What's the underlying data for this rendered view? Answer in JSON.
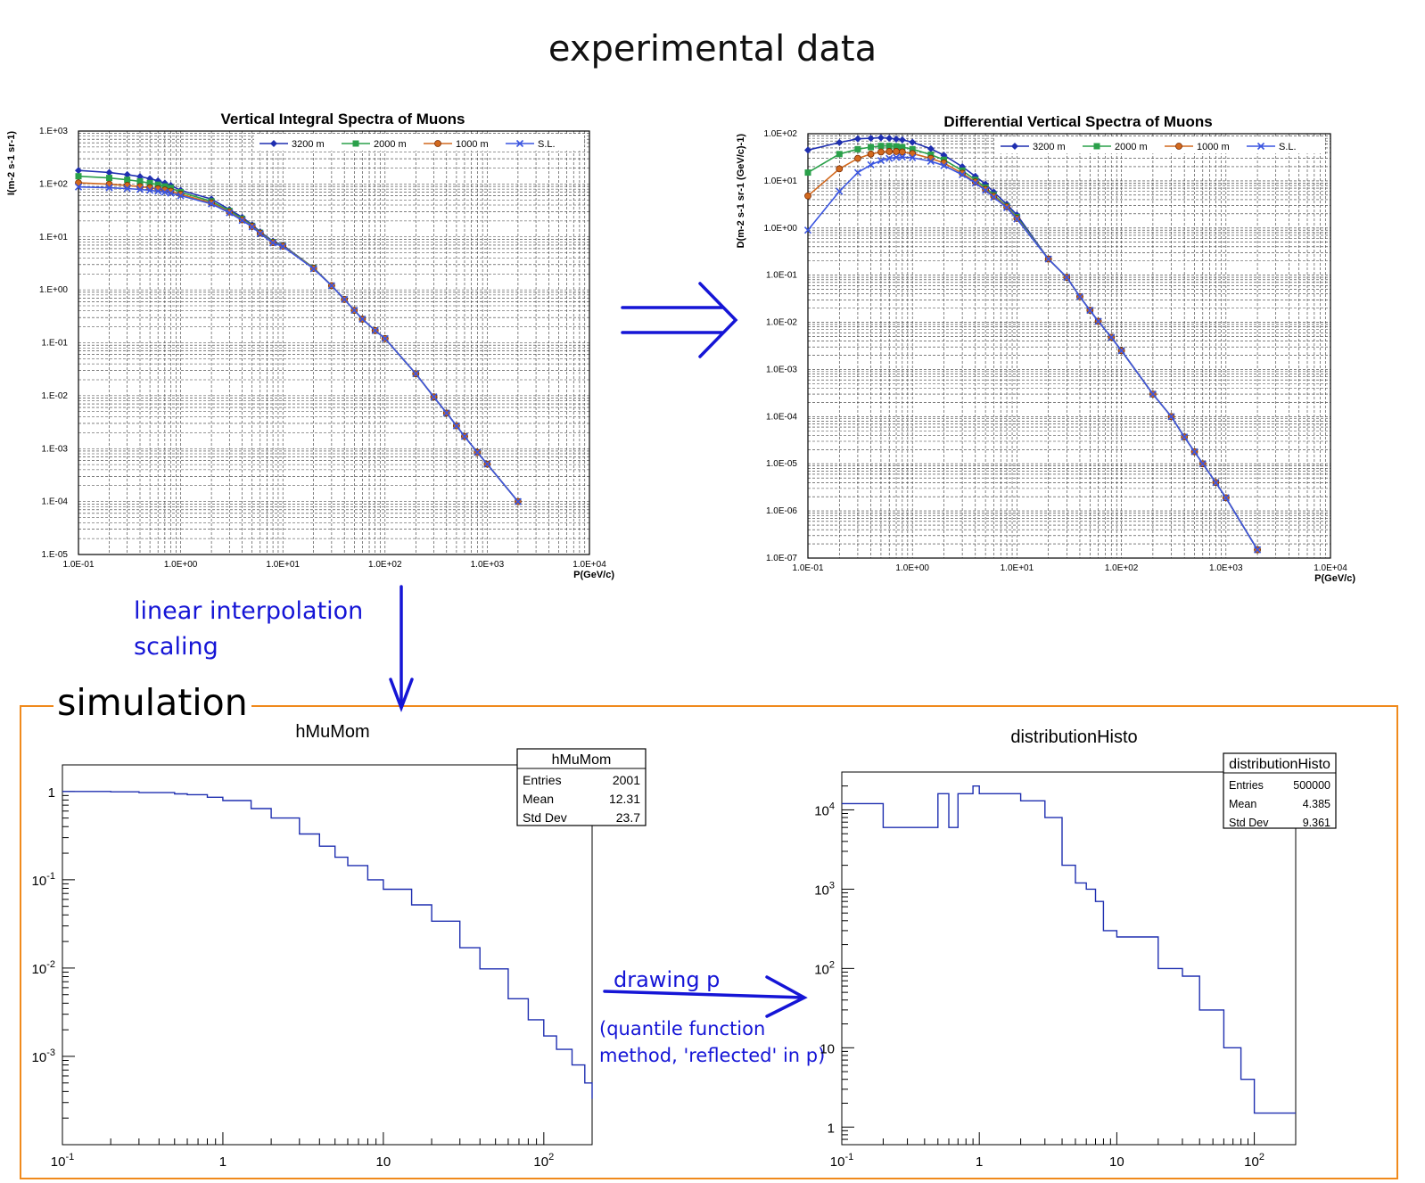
{
  "slide": {
    "title": "experimental data",
    "sim_label": "simulation",
    "note_interp_line1": "linear interpolation",
    "note_interp_line2": "scaling",
    "note_draw": "drawing p",
    "note_quantile_line1": "(quantile function",
    "note_quantile_line2": "method, 'reflected' in p)",
    "accent_color": "#1515d6",
    "frame_color": "#f08a1c"
  },
  "chart_data": [
    {
      "type": "line",
      "title": "Vertical Integral Spectra of Muons",
      "xlabel": "P(GeV/c)",
      "ylabel": "I(m-2 s-1 sr-1)",
      "xscale": "log",
      "yscale": "log",
      "xlim": [
        0.1,
        10000
      ],
      "ylim": [
        1e-05,
        1000
      ],
      "xtick_labels": [
        "1.0E-01",
        "1.0E+00",
        "1.0E+01",
        "1.0E+02",
        "1.0E+03",
        "1.0E+04"
      ],
      "ytick_labels": [
        "1.E+03",
        "1.E+02",
        "1.E+01",
        "1.E+00",
        "1.E-01",
        "1.E-02",
        "1.E-03",
        "1.E-04",
        "1.E-05"
      ],
      "grid": true,
      "legend_position": "top-right",
      "x": [
        0.1,
        0.2,
        0.3,
        0.4,
        0.5,
        0.6,
        0.7,
        0.8,
        1,
        2,
        3,
        4,
        5,
        6,
        8,
        10,
        20,
        30,
        40,
        50,
        60,
        80,
        100,
        200,
        300,
        400,
        500,
        600,
        800,
        1000,
        2000
      ],
      "series": [
        {
          "name": "3200 m",
          "color": "#1f2fb0",
          "marker": "diamond",
          "values": [
            180,
            165,
            150,
            138,
            126,
            115,
            104,
            94,
            76,
            52,
            33,
            23.5,
            17,
            12.5,
            8.3,
            7.0,
            2.6,
            1.2,
            0.66,
            0.41,
            0.28,
            0.17,
            0.12,
            0.026,
            0.0095,
            0.0047,
            0.0027,
            0.0017,
            0.00085,
            0.00051,
            0.0001
          ]
        },
        {
          "name": "2000 m",
          "color": "#2aa04a",
          "marker": "square",
          "values": [
            140,
            130,
            120,
            112,
            104,
            97,
            90,
            84,
            70,
            47,
            31,
            22,
            16.2,
            12,
            8.0,
            6.8,
            2.6,
            1.2,
            0.66,
            0.41,
            0.28,
            0.17,
            0.12,
            0.026,
            0.0095,
            0.0047,
            0.0027,
            0.0017,
            0.00085,
            0.00051,
            0.0001
          ]
        },
        {
          "name": "1000 m",
          "color": "#d2691e",
          "marker": "circle",
          "values": [
            105,
            99,
            94,
            89,
            85,
            81,
            77,
            73,
            64,
            44,
            29.5,
            21,
            15.8,
            11.8,
            7.8,
            6.7,
            2.55,
            1.2,
            0.66,
            0.41,
            0.28,
            0.17,
            0.12,
            0.026,
            0.0095,
            0.0047,
            0.0027,
            0.0017,
            0.00085,
            0.00051,
            0.0001
          ]
        },
        {
          "name": "S.L.",
          "color": "#3a55e0",
          "marker": "cross",
          "values": [
            88,
            85,
            82,
            79,
            76,
            73,
            70,
            67,
            60,
            42,
            28.5,
            20.5,
            15.5,
            11.5,
            7.7,
            6.6,
            2.5,
            1.2,
            0.66,
            0.41,
            0.28,
            0.17,
            0.12,
            0.026,
            0.0095,
            0.0047,
            0.0027,
            0.0017,
            0.00085,
            0.00051,
            0.0001
          ]
        }
      ]
    },
    {
      "type": "line",
      "title": "Differential Vertical Spectra of Muons",
      "xlabel": "P(GeV/c)",
      "ylabel": "D(m-2 s-1 sr-1 (GeV/c)-1)",
      "xscale": "log",
      "yscale": "log",
      "xlim": [
        0.1,
        10000
      ],
      "ylim": [
        1e-07,
        100
      ],
      "xtick_labels": [
        "1.0E-01",
        "1.0E+00",
        "1.0E+01",
        "1.0E+02",
        "1.0E+03",
        "1.0E+04"
      ],
      "ytick_labels": [
        "1.0E+02",
        "1.0E+01",
        "1.0E+00",
        "1.0E-01",
        "1.0E-02",
        "1.0E-03",
        "1.0E-04",
        "1.0E-05",
        "1.0E-06",
        "1.0E-07"
      ],
      "grid": true,
      "legend_position": "top-right",
      "x": [
        0.1,
        0.2,
        0.3,
        0.4,
        0.5,
        0.6,
        0.7,
        0.8,
        1,
        1.5,
        2,
        3,
        4,
        5,
        6,
        8,
        10,
        20,
        30,
        40,
        50,
        60,
        80,
        100,
        200,
        300,
        400,
        500,
        600,
        800,
        1000,
        2000
      ],
      "series": [
        {
          "name": "3200 m",
          "color": "#1f2fb0",
          "marker": "diamond",
          "values": [
            45,
            65,
            78,
            80,
            82,
            80,
            77,
            74,
            66,
            48,
            35,
            20,
            12.5,
            8.5,
            5.8,
            3.2,
            1.9,
            0.22,
            0.09,
            0.035,
            0.018,
            0.0105,
            0.0048,
            0.0025,
            0.0003,
            0.0001,
            3.7e-05,
            1.8e-05,
            1e-05,
            4e-06,
            1.9e-06,
            1.5e-07
          ]
        },
        {
          "name": "2000 m",
          "color": "#2aa04a",
          "marker": "square",
          "values": [
            15,
            37,
            47,
            52,
            55,
            55,
            54,
            52,
            47,
            36,
            28,
            16.5,
            10.5,
            7.2,
            5.0,
            2.9,
            1.7,
            0.22,
            0.09,
            0.035,
            0.018,
            0.0105,
            0.0048,
            0.0025,
            0.0003,
            0.0001,
            3.7e-05,
            1.8e-05,
            1e-05,
            4e-06,
            1.9e-06,
            1.5e-07
          ]
        },
        {
          "name": "1000 m",
          "color": "#d2691e",
          "marker": "circle",
          "values": [
            4.8,
            18,
            30,
            37,
            41,
            42,
            42,
            41,
            38,
            30,
            24,
            14.5,
            9.5,
            6.6,
            4.7,
            2.8,
            1.6,
            0.22,
            0.09,
            0.035,
            0.018,
            0.0105,
            0.0048,
            0.0025,
            0.0003,
            0.0001,
            3.7e-05,
            1.8e-05,
            1e-05,
            4e-06,
            1.9e-06,
            1.5e-07
          ]
        },
        {
          "name": "S.L.",
          "color": "#3a55e0",
          "marker": "cross",
          "values": [
            0.9,
            6,
            15,
            22,
            27,
            30,
            31.5,
            32,
            31,
            26,
            21,
            13.5,
            9,
            6.3,
            4.5,
            2.7,
            1.55,
            0.22,
            0.09,
            0.035,
            0.018,
            0.0105,
            0.0048,
            0.0025,
            0.0003,
            0.0001,
            3.7e-05,
            1.8e-05,
            1e-05,
            4e-06,
            1.9e-06,
            1.5e-07
          ]
        }
      ]
    },
    {
      "type": "line",
      "title": "hMuMom",
      "xscale": "log",
      "yscale": "log",
      "xlim": [
        0.1,
        200
      ],
      "ylim": [
        0.0001,
        2
      ],
      "xtick_labels": [
        "10",
        "1",
        "10",
        "10"
      ],
      "xtick_exponents": [
        "-1",
        "",
        "",
        "2"
      ],
      "ytick_labels": [
        "1",
        "10",
        "10",
        "10"
      ],
      "ytick_exponents": [
        "",
        "-1",
        "-2",
        "-3"
      ],
      "stats": {
        "name": "hMuMom",
        "rows": [
          [
            "Entries",
            "2001"
          ],
          [
            "Mean",
            "12.31"
          ],
          [
            "Std Dev",
            "23.7"
          ]
        ]
      },
      "series": [
        {
          "color": "#1f2fb0",
          "x": [
            0.1,
            0.2,
            0.3,
            0.5,
            0.6,
            0.8,
            1,
            1.5,
            2,
            3,
            4,
            5,
            6,
            8,
            10,
            15,
            20,
            30,
            40,
            60,
            80,
            100,
            120,
            150,
            180,
            200
          ],
          "values": [
            1.0,
            0.99,
            0.97,
            0.94,
            0.92,
            0.86,
            0.79,
            0.64,
            0.5,
            0.33,
            0.24,
            0.18,
            0.145,
            0.1,
            0.078,
            0.052,
            0.034,
            0.017,
            0.0098,
            0.0045,
            0.0026,
            0.0017,
            0.0012,
            0.0008,
            0.0005,
            0.00033
          ]
        }
      ]
    },
    {
      "type": "line",
      "title": "distributionHisto",
      "xscale": "log",
      "yscale": "log",
      "xlim": [
        0.1,
        200
      ],
      "ylim": [
        0.6,
        30000
      ],
      "xtick_labels": [
        "10",
        "1",
        "10",
        "10"
      ],
      "xtick_exponents": [
        "-1",
        "",
        "",
        "2"
      ],
      "ytick_labels": [
        "10",
        "10",
        "10",
        "10",
        "1"
      ],
      "ytick_exponents": [
        "4",
        "3",
        "2",
        "",
        ""
      ],
      "stats": {
        "name": "distributionHisto",
        "rows": [
          [
            "Entries",
            "500000"
          ],
          [
            "Mean",
            "4.385"
          ],
          [
            "Std Dev",
            "9.361"
          ]
        ]
      },
      "series": [
        {
          "color": "#1f2fb0",
          "x": [
            0.1,
            0.2,
            0.4,
            0.5,
            0.6,
            0.7,
            0.8,
            0.9,
            1.0,
            2.0,
            3.0,
            4.0,
            5.0,
            6.0,
            7.0,
            8.0,
            10.0,
            20.0,
            30.0,
            40.0,
            60.0,
            80.0,
            100.0,
            150.0,
            200.0
          ],
          "values": [
            12000,
            6000,
            6000,
            16000,
            6000,
            16000,
            16000,
            20000,
            16000,
            13000,
            8000,
            2000,
            1200,
            1000,
            700,
            300,
            250,
            100,
            80,
            30,
            10,
            4,
            1.5,
            1.5,
            1.5
          ]
        }
      ]
    }
  ]
}
